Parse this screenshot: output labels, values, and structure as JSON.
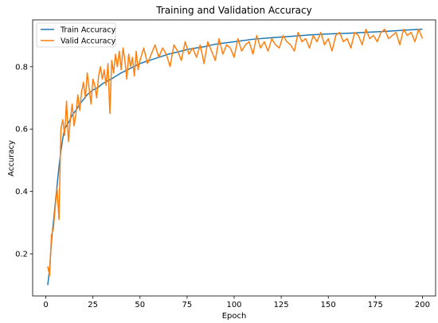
{
  "chart_data": {
    "type": "line",
    "title": "Training and Validation Accuracy",
    "xlabel": "Epoch",
    "ylabel": "Accuracy",
    "xlim": [
      -7,
      207
    ],
    "ylim": [
      0.065,
      0.95
    ],
    "xticks": [
      0,
      25,
      50,
      75,
      100,
      125,
      150,
      175,
      200
    ],
    "yticks": [
      0.2,
      0.4,
      0.6,
      0.8
    ],
    "ytick_labels": [
      "0.2",
      "0.4",
      "0.6",
      "0.8"
    ],
    "legend_position": "top-left",
    "grid": false,
    "series": [
      {
        "name": "Train Accuracy",
        "color": "#1f77b4",
        "x": [
          1,
          2,
          3,
          4,
          5,
          6,
          7,
          8,
          9,
          10,
          12,
          14,
          16,
          18,
          20,
          22,
          25,
          28,
          30,
          33,
          36,
          40,
          45,
          50,
          55,
          60,
          65,
          70,
          75,
          80,
          85,
          90,
          95,
          100,
          110,
          120,
          130,
          140,
          150,
          160,
          170,
          180,
          190,
          200
        ],
        "y": [
          0.1,
          0.15,
          0.24,
          0.3,
          0.36,
          0.42,
          0.48,
          0.53,
          0.57,
          0.6,
          0.62,
          0.645,
          0.66,
          0.68,
          0.695,
          0.71,
          0.725,
          0.735,
          0.745,
          0.755,
          0.765,
          0.78,
          0.795,
          0.81,
          0.82,
          0.83,
          0.84,
          0.847,
          0.855,
          0.86,
          0.865,
          0.872,
          0.876,
          0.88,
          0.888,
          0.893,
          0.897,
          0.902,
          0.905,
          0.907,
          0.91,
          0.913,
          0.917,
          0.92
        ]
      },
      {
        "name": "Valid Accuracy",
        "color": "#ff7f0e",
        "x": [
          1,
          2,
          3,
          4,
          5,
          6,
          7,
          8,
          9,
          10,
          11,
          12,
          13,
          14,
          15,
          16,
          17,
          18,
          19,
          20,
          21,
          22,
          23,
          24,
          25,
          26,
          27,
          28,
          29,
          30,
          31,
          32,
          33,
          34,
          35,
          36,
          37,
          38,
          39,
          40,
          41,
          42,
          43,
          44,
          45,
          46,
          47,
          48,
          49,
          50,
          52,
          54,
          56,
          58,
          60,
          62,
          64,
          66,
          68,
          70,
          72,
          74,
          76,
          78,
          80,
          82,
          84,
          86,
          88,
          90,
          92,
          94,
          96,
          98,
          100,
          102,
          104,
          106,
          108,
          110,
          112,
          114,
          116,
          118,
          120,
          122,
          124,
          126,
          128,
          130,
          132,
          134,
          136,
          138,
          140,
          142,
          144,
          146,
          148,
          150,
          152,
          154,
          156,
          158,
          160,
          162,
          164,
          166,
          168,
          170,
          172,
          174,
          176,
          178,
          180,
          182,
          184,
          186,
          188,
          190,
          192,
          194,
          196,
          198,
          200
        ],
        "y": [
          0.16,
          0.13,
          0.26,
          0.28,
          0.35,
          0.41,
          0.31,
          0.6,
          0.63,
          0.58,
          0.69,
          0.56,
          0.63,
          0.68,
          0.61,
          0.65,
          0.71,
          0.66,
          0.72,
          0.75,
          0.7,
          0.78,
          0.73,
          0.68,
          0.76,
          0.74,
          0.7,
          0.77,
          0.8,
          0.76,
          0.79,
          0.74,
          0.81,
          0.65,
          0.82,
          0.78,
          0.84,
          0.8,
          0.85,
          0.79,
          0.86,
          0.82,
          0.76,
          0.84,
          0.8,
          0.83,
          0.77,
          0.85,
          0.79,
          0.82,
          0.86,
          0.81,
          0.84,
          0.87,
          0.83,
          0.86,
          0.84,
          0.8,
          0.87,
          0.85,
          0.82,
          0.88,
          0.84,
          0.86,
          0.83,
          0.87,
          0.81,
          0.88,
          0.85,
          0.82,
          0.89,
          0.84,
          0.87,
          0.86,
          0.83,
          0.89,
          0.85,
          0.87,
          0.88,
          0.84,
          0.9,
          0.86,
          0.88,
          0.85,
          0.89,
          0.87,
          0.86,
          0.9,
          0.88,
          0.87,
          0.85,
          0.91,
          0.88,
          0.89,
          0.86,
          0.9,
          0.88,
          0.91,
          0.87,
          0.89,
          0.85,
          0.9,
          0.91,
          0.88,
          0.89,
          0.86,
          0.91,
          0.9,
          0.87,
          0.92,
          0.89,
          0.9,
          0.88,
          0.91,
          0.92,
          0.89,
          0.9,
          0.91,
          0.87,
          0.92,
          0.9,
          0.91,
          0.88,
          0.92,
          0.89
        ]
      }
    ]
  }
}
